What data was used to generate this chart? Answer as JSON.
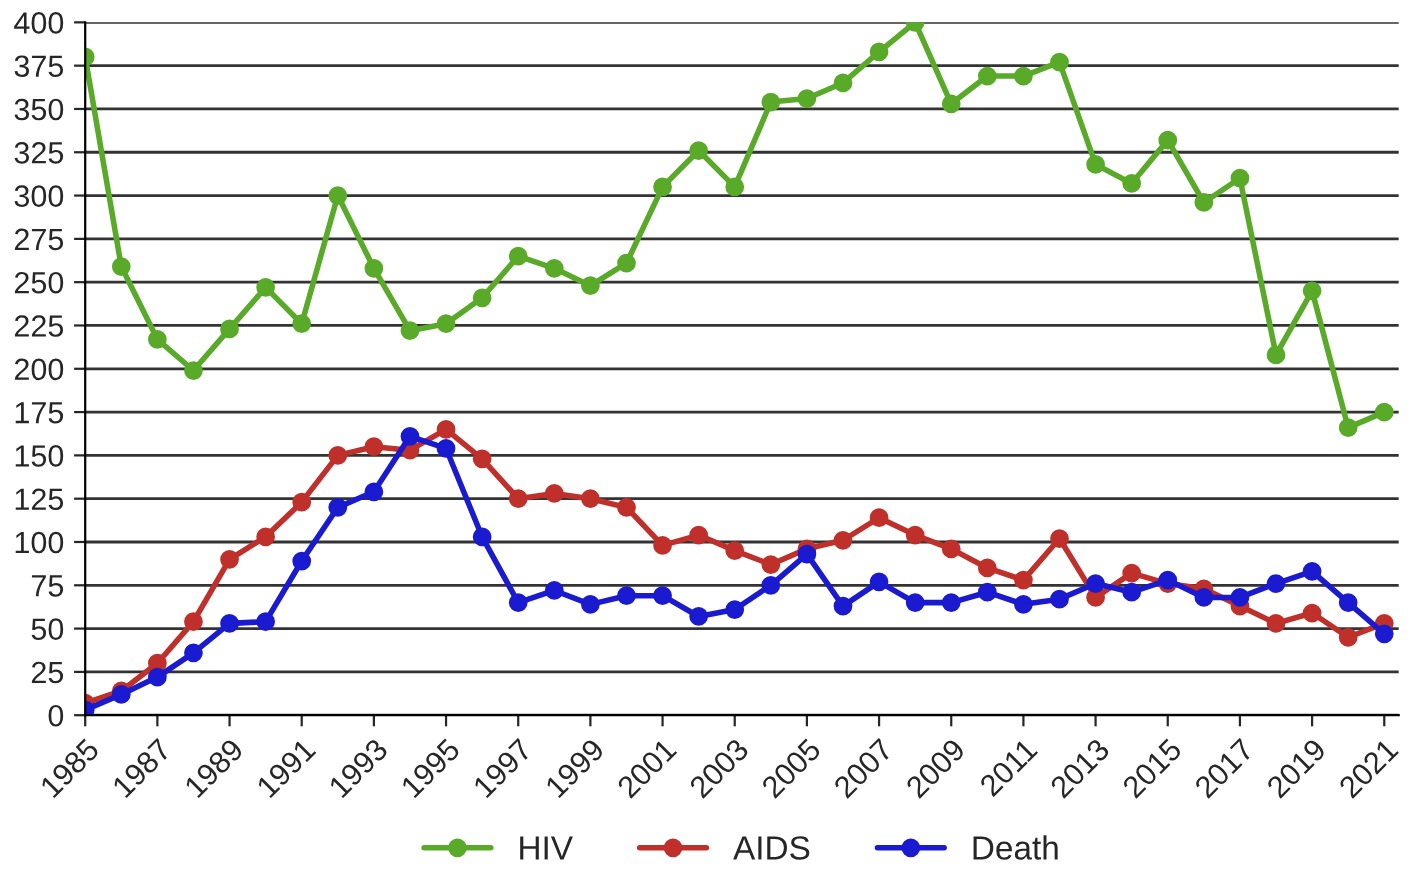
{
  "chart_data": {
    "type": "line",
    "x": [
      1985,
      1986,
      1987,
      1988,
      1989,
      1990,
      1991,
      1992,
      1993,
      1994,
      1995,
      1996,
      1997,
      1998,
      1999,
      2000,
      2001,
      2002,
      2003,
      2004,
      2005,
      2006,
      2007,
      2008,
      2009,
      2010,
      2011,
      2012,
      2013,
      2014,
      2015,
      2016,
      2017,
      2018,
      2019,
      2020,
      2021
    ],
    "series": [
      {
        "name": "HIV",
        "color": "#5aaa2a",
        "values": [
          380,
          259,
          217,
          199,
          223,
          247,
          226,
          300,
          258,
          222,
          226,
          241,
          265,
          258,
          248,
          261,
          305,
          326,
          305,
          354,
          356,
          365,
          383,
          400,
          353,
          369,
          369,
          377,
          318,
          307,
          332,
          296,
          310,
          208,
          245,
          166,
          175
        ]
      },
      {
        "name": "AIDS",
        "color": "#c0302a",
        "values": [
          7,
          14,
          30,
          54,
          90,
          103,
          123,
          150,
          155,
          153,
          165,
          148,
          125,
          128,
          125,
          120,
          98,
          104,
          95,
          87,
          96,
          101,
          114,
          104,
          96,
          85,
          78,
          102,
          68,
          82,
          76,
          73,
          63,
          53,
          59,
          45,
          53
        ]
      },
      {
        "name": "Death",
        "color": "#1a1ad0",
        "values": [
          3,
          12,
          22,
          36,
          53,
          54,
          89,
          120,
          129,
          161,
          154,
          103,
          65,
          72,
          64,
          69,
          69,
          57,
          61,
          75,
          93,
          63,
          77,
          65,
          65,
          71,
          64,
          67,
          76,
          71,
          78,
          68,
          68,
          76,
          83,
          65,
          47
        ]
      }
    ],
    "xlim": [
      1985,
      2021.4
    ],
    "xticks": [
      1985,
      1987,
      1989,
      1991,
      1993,
      1995,
      1997,
      1999,
      2001,
      2003,
      2005,
      2007,
      2009,
      2011,
      2013,
      2015,
      2017,
      2019,
      2021
    ],
    "ylim": [
      0,
      400
    ],
    "yticks": [
      0,
      25,
      50,
      75,
      100,
      125,
      150,
      175,
      200,
      225,
      250,
      275,
      300,
      325,
      350,
      375,
      400
    ],
    "grid": "y",
    "legend": "bottom",
    "marker": "circle",
    "line_style": "solid"
  }
}
